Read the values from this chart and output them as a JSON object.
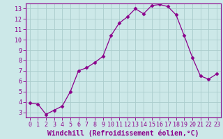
{
  "x": [
    0,
    1,
    2,
    3,
    4,
    5,
    6,
    7,
    8,
    9,
    10,
    11,
    12,
    13,
    14,
    15,
    16,
    17,
    18,
    19,
    20,
    21,
    22,
    23
  ],
  "y": [
    3.9,
    3.8,
    2.8,
    3.2,
    3.6,
    5.0,
    7.0,
    7.3,
    7.8,
    8.4,
    10.4,
    11.6,
    12.2,
    13.0,
    12.5,
    13.3,
    13.4,
    13.2,
    12.4,
    10.4,
    8.3,
    6.5,
    6.2,
    6.7
  ],
  "line_color": "#8B008B",
  "marker": "D",
  "marker_size": 2.5,
  "bg_color": "#cce8e8",
  "grid_color": "#aacccc",
  "xlabel": "Windchill (Refroidissement éolien,°C)",
  "xlim": [
    -0.5,
    23.5
  ],
  "ylim": [
    2.5,
    13.5
  ],
  "yticks": [
    3,
    4,
    5,
    6,
    7,
    8,
    9,
    10,
    11,
    12,
    13
  ],
  "xticks": [
    0,
    1,
    2,
    3,
    4,
    5,
    6,
    7,
    8,
    9,
    10,
    11,
    12,
    13,
    14,
    15,
    16,
    17,
    18,
    19,
    20,
    21,
    22,
    23
  ],
  "font_color": "#8B008B",
  "label_fontsize": 7,
  "tick_fontsize": 6
}
